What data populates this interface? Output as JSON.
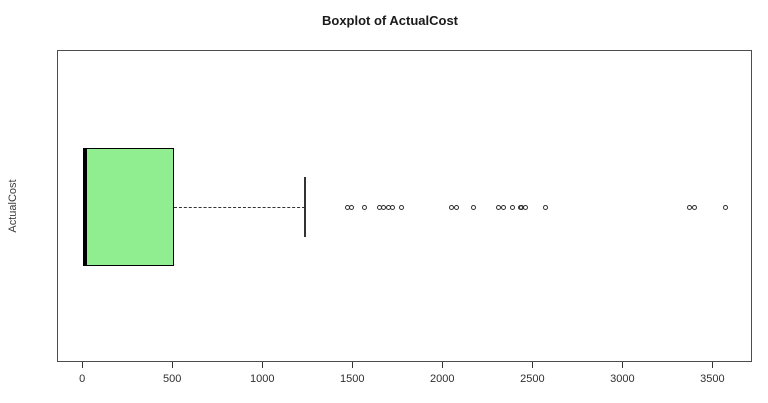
{
  "title": "Boxplot of ActualCost",
  "chart_data": {
    "type": "boxplot",
    "orientation": "horizontal",
    "title": "Boxplot of ActualCost",
    "ylabel": "ActualCost",
    "xlabel": "",
    "xlim": [
      -140,
      3720
    ],
    "x_tick_values": [
      0,
      500,
      1000,
      1500,
      2000,
      2500,
      3000,
      3500
    ],
    "x_tick_labels": [
      "0",
      "500",
      "1000",
      "1500",
      "2000",
      "2500",
      "3000",
      "3500"
    ],
    "grid": false,
    "legend": null,
    "series": [
      {
        "name": "ActualCost",
        "q1": 0,
        "median": 15,
        "q3": 505,
        "whisker_low": 0,
        "whisker_high": 1230,
        "outliers": [
          1470,
          1490,
          1565,
          1645,
          1670,
          1695,
          1720,
          1770,
          2045,
          2075,
          2170,
          2305,
          2335,
          2385,
          2428,
          2432,
          2455,
          2570,
          3370,
          3395,
          3570
        ]
      }
    ],
    "colors": {
      "box_fill": "#90ee90",
      "box_border": "#000000",
      "median": "#000000",
      "whisker": "#333333",
      "outlier": "#2f2f2f",
      "plot_border": "#4d4d4d",
      "text": "#1a1a1a",
      "background": "#ffffff"
    }
  }
}
